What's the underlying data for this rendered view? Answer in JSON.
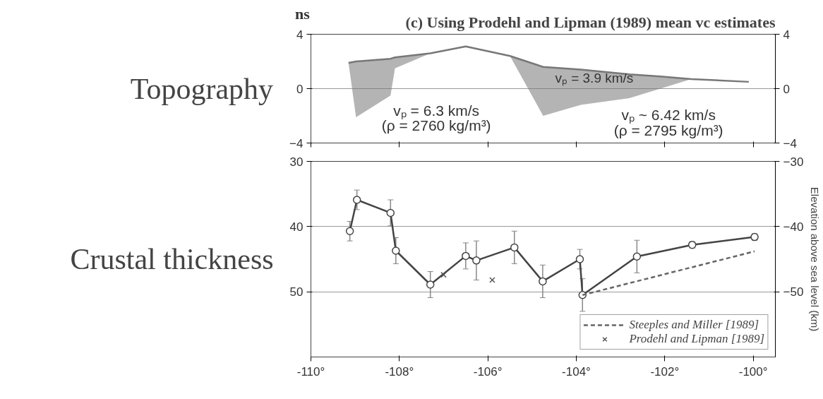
{
  "chart_data": [
    {
      "type": "line",
      "title": "(c) Using Prodehl and Lipman (1989) mean vc estimates",
      "ylabel": "Topography",
      "annotations": [
        "ns",
        "vₚ = 3.9 km/s",
        "vₚ = 6.3 km/s",
        "(ρ = 2760 kg/m³)",
        "vₚ ~ 6.42 km/s",
        "(ρ = 2795 kg/m³)"
      ],
      "x": [
        -109.15,
        -108.98,
        -108.2,
        -108.1,
        -107.3,
        -106.5,
        -105.5,
        -104.75,
        -103.9,
        -102.8,
        -102.1,
        -101.4,
        -100.1
      ],
      "series": [
        {
          "color": "#777777",
          "values": [
            1.9,
            2.0,
            2.2,
            2.3,
            2.6,
            3.1,
            2.4,
            1.6,
            1.4,
            1.05,
            0.9,
            0.7,
            0.5
          ],
          "lower": [
            1.9,
            -2.1,
            -0.5,
            1.5,
            2.6,
            3.1,
            2.4,
            -2.0,
            -1.2,
            -0.7,
            0.0,
            0.7,
            0.5
          ],
          "upper": [
            1.9,
            2.0,
            2.2,
            2.3,
            2.6,
            3.1,
            2.4,
            1.6,
            1.4,
            1.05,
            0.9,
            0.7,
            0.5
          ]
        }
      ],
      "xlim": [
        -110,
        -99.5
      ],
      "xticks": [
        -110,
        -108,
        -106,
        -104,
        -102,
        -100
      ],
      "ylim": [
        -4,
        4
      ],
      "yticks": [
        -4,
        0,
        4
      ],
      "y2lim": [
        -4,
        4
      ],
      "y2ticks": [
        -4,
        0,
        4
      ],
      "grid": "y",
      "tick_labels": "y"
    },
    {
      "type": "line",
      "ylabel": "Crustal thickness",
      "y2label": "Elevation above sea level (km)",
      "series": [
        {
          "color": "#444444",
          "marker": "circle",
          "x": [
            -109.12,
            -108.96,
            -108.2,
            -108.08,
            -107.3,
            -106.5,
            -106.26,
            -105.4,
            -104.76,
            -103.92,
            -103.86,
            -102.63,
            -101.38,
            -99.97
          ],
          "values": [
            40.7,
            35.9,
            37.9,
            43.7,
            48.9,
            44.5,
            45.2,
            43.2,
            48.4,
            45.0,
            50.5,
            44.6,
            42.8,
            41.6
          ],
          "errors": [
            1.5,
            1.5,
            2,
            2,
            2,
            2,
            3,
            2.5,
            2.5,
            1.5,
            2.5,
            2.5,
            0.5,
            0.5
          ]
        },
        {
          "name": "Steeples and Miller [1989]",
          "color": "#666666",
          "line_style": "dashed",
          "x": [
            -103.86,
            -99.97
          ],
          "values": [
            50.5,
            43.8
          ]
        },
        {
          "name": "Prodehl and Lipman [1989]",
          "type": "scatter",
          "marker": "cross",
          "color": "#555555",
          "x": [
            -107.0,
            -105.9
          ],
          "values": [
            47.4,
            48.2
          ]
        }
      ],
      "xlim": [
        -110,
        -99.5
      ],
      "xticks": [
        {
          "value": -110,
          "label": "-110°"
        },
        {
          "value": -108,
          "label": "-108°"
        },
        {
          "value": -106,
          "label": "-106°"
        },
        {
          "value": -104,
          "label": "-104°"
        },
        {
          "value": -102,
          "label": "-102°"
        },
        {
          "value": -100,
          "label": "-100°"
        }
      ],
      "ylim": [
        60,
        30
      ],
      "yticks": [
        30,
        40,
        50
      ],
      "y2lim": [
        -60,
        -30
      ],
      "y2ticks": [
        -30,
        -40,
        -50
      ],
      "grid": "y",
      "legend": "bottom right"
    }
  ]
}
